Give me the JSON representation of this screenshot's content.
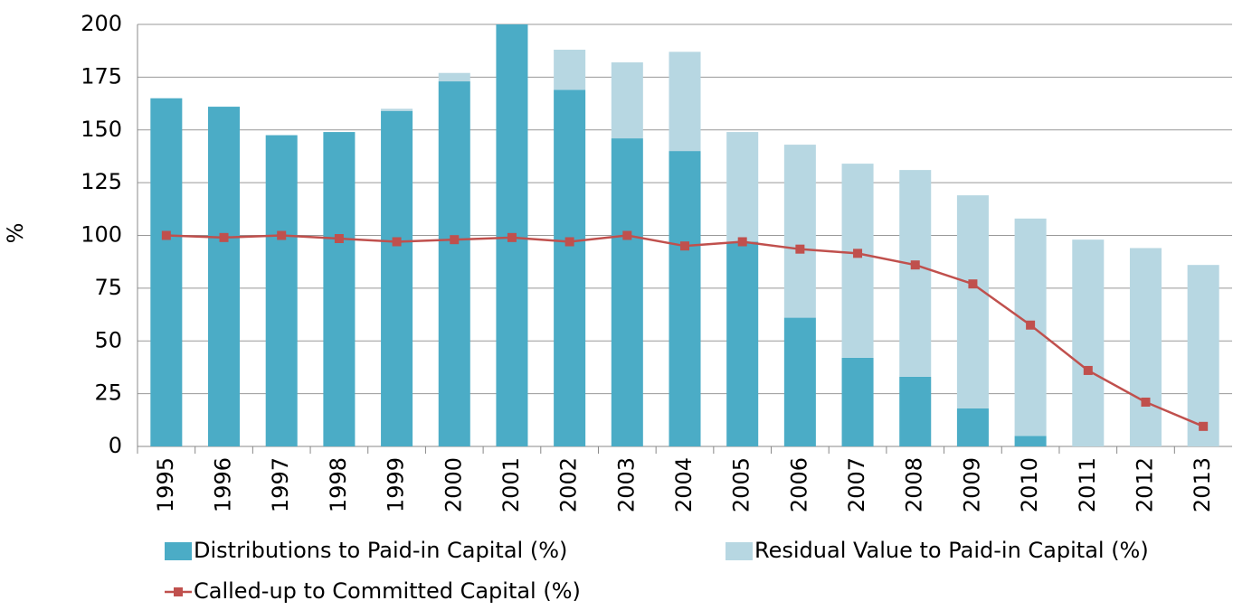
{
  "chart_data": {
    "type": "bar",
    "stacked": true,
    "ylabel": "%",
    "categories": [
      "1995",
      "1996",
      "1997",
      "1998",
      "1999",
      "2000",
      "2001",
      "2002",
      "2003",
      "2004",
      "2005",
      "2006",
      "2007",
      "2008",
      "2009",
      "2010",
      "2011",
      "2012",
      "2013"
    ],
    "series": [
      {
        "name": "Distributions to Paid-in Capital (%)",
        "color": "#4bacc6",
        "values": [
          165,
          161,
          147.5,
          149,
          159,
          173,
          200,
          169,
          146,
          140,
          97,
          61,
          42,
          33,
          18,
          5,
          0,
          0,
          0
        ]
      },
      {
        "name": "Residual Value to Paid-in Capital (%)",
        "color": "#b7d7e2",
        "values": [
          0,
          0,
          0,
          0,
          1,
          4,
          0,
          19,
          36,
          47,
          52,
          82,
          92,
          98,
          101,
          103,
          98,
          94,
          86
        ]
      },
      {
        "name": "Called-up to Committed Capital (%)",
        "color": "#c0504d",
        "type": "line",
        "values": [
          100,
          99,
          100,
          98.5,
          97,
          98,
          99,
          97,
          100,
          95,
          97,
          93.5,
          91.5,
          86,
          77,
          57.5,
          36,
          21,
          9.5
        ]
      }
    ],
    "ylim": [
      0,
      200
    ],
    "yticks": [
      0,
      25,
      50,
      75,
      100,
      125,
      150,
      175,
      200
    ],
    "grid": true
  }
}
